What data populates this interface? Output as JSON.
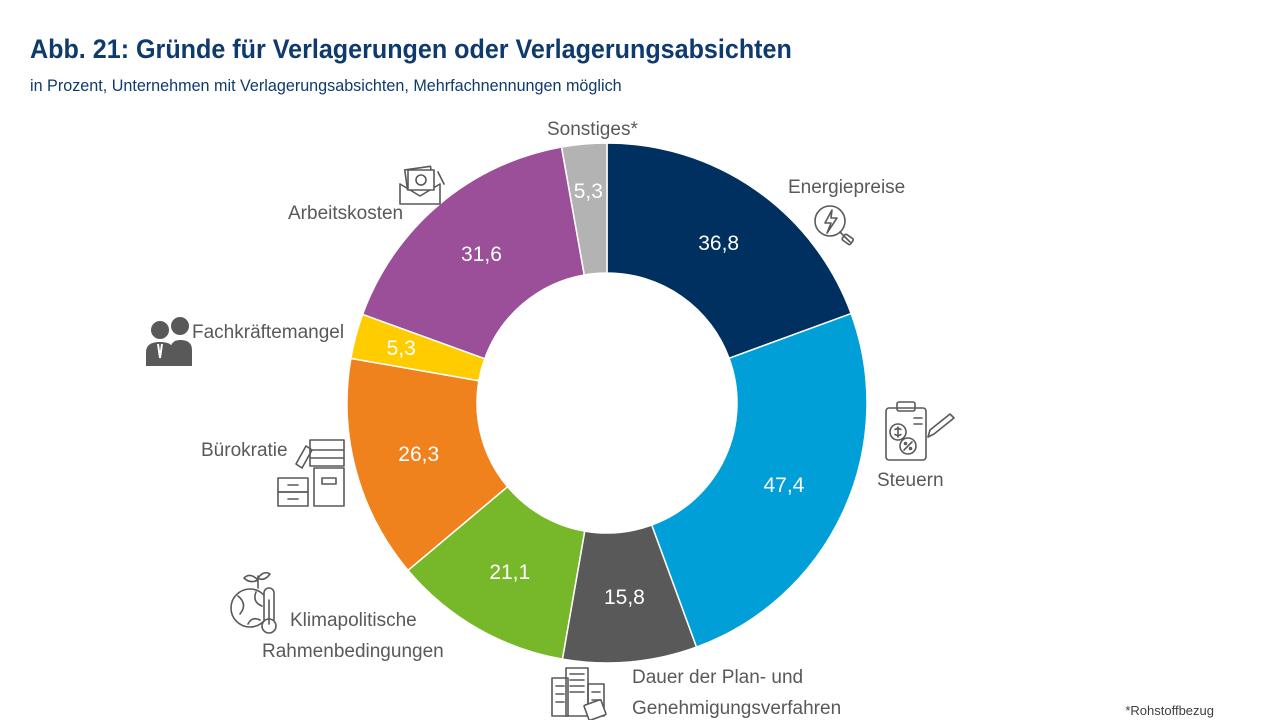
{
  "header": {
    "title": "Abb. 21: Gründe für Verlagerungen oder Verlagerungsabsichten",
    "subtitle": "in Prozent, Unternehmen mit Verlagerungsabsichten, Mehrfachnennungen möglich"
  },
  "footnote": "*Rohstoffbezug",
  "chart_data": {
    "type": "pie",
    "variant": "donut",
    "title": "Abb. 21: Gründe für Verlagerungen oder Verlagerungsabsichten",
    "subtitle": "in Prozent, Unternehmen mit Verlagerungsabsichten, Mehrfachnennungen möglich",
    "slices": [
      {
        "key": "energiepreise",
        "label": "Energiepreise",
        "value": 36.8,
        "value_label": "36,8",
        "color": "#00305f",
        "icon": "energy-price-icon"
      },
      {
        "key": "steuern",
        "label": "Steuern",
        "value": 47.4,
        "value_label": "47,4",
        "color": "#009fd8",
        "icon": "tax-document-icon"
      },
      {
        "key": "dauer",
        "label": "Dauer der Plan- und Genehmigungsverfahren",
        "label_lines": [
          "Dauer der Plan- und",
          "Genehmigungsverfahren"
        ],
        "value": 15.8,
        "value_label": "15,8",
        "color": "#595959",
        "icon": "buildings-permit-icon"
      },
      {
        "key": "klima",
        "label": "Klimapolitische Rahmenbedingungen",
        "label_lines": [
          "Klimapolitische",
          "Rahmenbedingungen"
        ],
        "value": 21.1,
        "value_label": "21,1",
        "color": "#76b82a",
        "icon": "climate-thermometer-icon"
      },
      {
        "key": "buerokratie",
        "label": "Bürokratie",
        "value": 26.3,
        "value_label": "26,3",
        "color": "#f0821e",
        "icon": "paperwork-icon"
      },
      {
        "key": "fachkraefte",
        "label": "Fachkräftemangel",
        "value": 5.3,
        "value_label": "5,3",
        "color": "#ffcc00",
        "icon": "workers-icon"
      },
      {
        "key": "arbeitskosten",
        "label": "Arbeitskosten",
        "value": 31.6,
        "value_label": "31,6",
        "color": "#9b4f98",
        "icon": "money-envelope-icon"
      },
      {
        "key": "sonstiges",
        "label": "Sonstiges*",
        "value": 5.3,
        "value_label": "5,3",
        "color": "#b3b3b3",
        "icon": ""
      }
    ],
    "legend": "none"
  }
}
